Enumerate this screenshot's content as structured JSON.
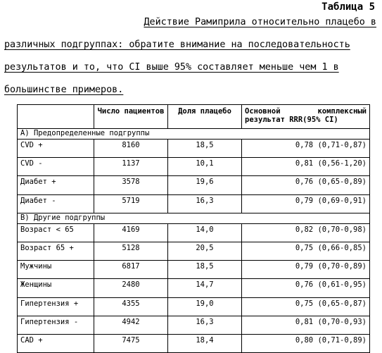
{
  "title": "Таблица 5",
  "caption": {
    "line1": "Действие Рамиприла относительно плацебо в",
    "line2": "различных подгруппах: обратите внимание на последовательность",
    "line3": "результатов и то, что CI выше 95% составляет меньше чем 1 в",
    "line4": "большинстве примеров."
  },
  "table": {
    "headers": {
      "col1": "",
      "col2": "Число пациентов",
      "col3": "Доля плацебо",
      "col4": "Основной комплексный результат RRR(95% CI)"
    },
    "sections": [
      {
        "label": "A) Предопределенные подгруппы",
        "rows": [
          {
            "name": "CVD +",
            "patients": "8160",
            "placebo": "18,5",
            "result": "0,78 (0,71-0,87)"
          },
          {
            "name": "CVD -",
            "patients": "1137",
            "placebo": "10,1",
            "result": "0,81 (0,56-1,20)"
          },
          {
            "name": "Диабет +",
            "patients": "3578",
            "placebo": "19,6",
            "result": "0,76 (0,65-0,89)"
          },
          {
            "name": "Диабет -",
            "patients": "5719",
            "placebo": "16,3",
            "result": "0,79 (0,69-0,91)"
          }
        ]
      },
      {
        "label": "B) Другие подгруппы",
        "rows": [
          {
            "name": "Возраст < 65",
            "patients": "4169",
            "placebo": "14,0",
            "result": "0,82 (0,70-0,98)"
          },
          {
            "name": "Возраст 65 +",
            "patients": "5128",
            "placebo": "20,5",
            "result": "0,75 (0,66-0,85)"
          },
          {
            "name": "Мужчины",
            "patients": "6817",
            "placebo": "18,5",
            "result": "0,79 (0,70-0,89)"
          },
          {
            "name": "Женщины",
            "patients": "2480",
            "placebo": "14,7",
            "result": "0,76 (0,61-0,95)"
          },
          {
            "name": "Гипертензия +",
            "patients": "4355",
            "placebo": "19,0",
            "result": "0,75 (0,65-0,87)"
          },
          {
            "name": "Гипертензия -",
            "patients": "4942",
            "placebo": "16,3",
            "result": "0,81 (0,70-0,93)"
          },
          {
            "name": "CAD +",
            "patients": "7475",
            "placebo": "18,4",
            "result": "0,80 (0,71-0,89)"
          }
        ]
      }
    ]
  }
}
